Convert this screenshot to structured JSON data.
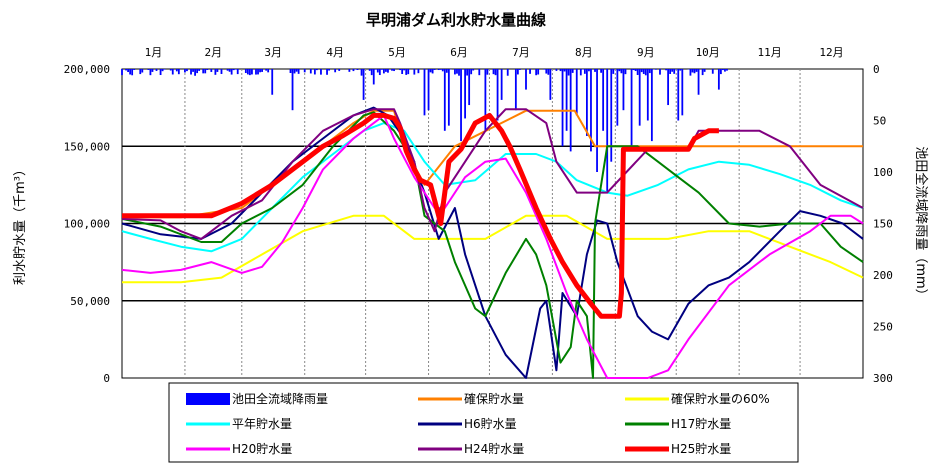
{
  "chart_data": {
    "title": "早明浦ダム利水貯水量曲線",
    "type": "line",
    "months": [
      "1月",
      "2月",
      "3月",
      "4月",
      "5月",
      "6月",
      "7月",
      "8月",
      "9月",
      "10月",
      "11月",
      "12月"
    ],
    "y_left": {
      "label": "利水貯水量（千m³）",
      "range": [
        0,
        200000
      ],
      "ticks": [
        "0",
        "50,000",
        "100,000",
        "150,000",
        "200,000"
      ]
    },
    "y_right": {
      "label": "池田全流域降雨量（mm）",
      "range": [
        0,
        300
      ],
      "inverted": true,
      "ticks": [
        "0",
        "50",
        "100",
        "150",
        "200",
        "250",
        "300"
      ]
    },
    "x_range_days": [
      1,
      366
    ],
    "colors": {
      "rain": "#0000ff",
      "secure": "#ff8000",
      "secure60": "#ffff00",
      "avg": "#00ffff",
      "h6": "#000080",
      "h17": "#008000",
      "h20": "#ff00ff",
      "h24": "#800080",
      "h25": "#ff0000"
    },
    "series": [
      {
        "key": "secure",
        "name": "確保貯水量",
        "width": 2,
        "x": [
          1,
          30,
          60,
          90,
          115,
          125,
          135,
          140,
          150,
          165,
          200,
          224,
          234,
          366
        ],
        "y": [
          104000,
          104000,
          110000,
          140000,
          165000,
          173000,
          173000,
          150000,
          125000,
          150000,
          173000,
          173000,
          150000,
          150000
        ]
      },
      {
        "key": "secure60",
        "name": "確保貯水量の60%",
        "width": 2,
        "x": [
          1,
          30,
          50,
          70,
          90,
          115,
          130,
          145,
          160,
          180,
          200,
          220,
          240,
          270,
          290,
          310,
          330,
          350,
          366
        ],
        "y": [
          62000,
          62000,
          65000,
          80000,
          95000,
          105000,
          105000,
          90000,
          90000,
          90000,
          105000,
          105000,
          90000,
          90000,
          95000,
          95000,
          85000,
          75000,
          65000
        ]
      },
      {
        "key": "avg",
        "name": "平年貯水量",
        "width": 2,
        "x": [
          1,
          15,
          30,
          45,
          60,
          75,
          90,
          105,
          120,
          130,
          140,
          150,
          160,
          175,
          190,
          205,
          215,
          225,
          240,
          250,
          265,
          280,
          295,
          310,
          325,
          340,
          355,
          366
        ],
        "y": [
          95000,
          90000,
          85000,
          82000,
          90000,
          110000,
          130000,
          145000,
          160000,
          165000,
          160000,
          140000,
          125000,
          128000,
          145000,
          145000,
          140000,
          128000,
          120000,
          118000,
          125000,
          135000,
          140000,
          138000,
          132000,
          125000,
          115000,
          110000
        ]
      },
      {
        "key": "h6",
        "name": "H6貯水量",
        "width": 2,
        "x": [
          1,
          20,
          40,
          55,
          70,
          85,
          100,
          115,
          125,
          132,
          140,
          150,
          157,
          165,
          170,
          180,
          190,
          200,
          207,
          210,
          215,
          218,
          225,
          230,
          235,
          240,
          245,
          255,
          262,
          270,
          280,
          290,
          300,
          310,
          325,
          335,
          345,
          356,
          366
        ],
        "y": [
          100000,
          93000,
          90000,
          100000,
          120000,
          140000,
          155000,
          170000,
          175000,
          170000,
          155000,
          120000,
          90000,
          110000,
          80000,
          40000,
          15000,
          0,
          45000,
          50000,
          5000,
          55000,
          40000,
          80000,
          102000,
          100000,
          75000,
          40000,
          30000,
          25000,
          48000,
          60000,
          65000,
          75000,
          95000,
          108000,
          105000,
          100000,
          90000
        ]
      },
      {
        "key": "h17",
        "name": "H17貯水量",
        "width": 2,
        "x": [
          1,
          20,
          40,
          50,
          60,
          75,
          90,
          105,
          120,
          125,
          135,
          145,
          150,
          160,
          165,
          175,
          180,
          190,
          200,
          205,
          210,
          217,
          222,
          225,
          230,
          233,
          234,
          240,
          245,
          255,
          265,
          275,
          285,
          300,
          315,
          330,
          345,
          355,
          366
        ],
        "y": [
          103000,
          98000,
          88000,
          88000,
          100000,
          110000,
          125000,
          150000,
          170000,
          172000,
          160000,
          140000,
          105000,
          95000,
          75000,
          45000,
          40000,
          68000,
          90000,
          80000,
          60000,
          10000,
          20000,
          50000,
          40000,
          0,
          100000,
          150000,
          150000,
          150000,
          140000,
          130000,
          120000,
          100000,
          98000,
          100000,
          100000,
          85000,
          75000
        ]
      },
      {
        "key": "h20",
        "name": "H20貯水量",
        "width": 2,
        "x": [
          1,
          15,
          30,
          45,
          60,
          70,
          80,
          90,
          100,
          115,
          125,
          130,
          135,
          145,
          155,
          160,
          170,
          180,
          190,
          200,
          210,
          220,
          230,
          240,
          250,
          260,
          270,
          280,
          300,
          320,
          340,
          350,
          360,
          366
        ],
        "y": [
          70000,
          68000,
          70000,
          75000,
          68000,
          72000,
          88000,
          110000,
          135000,
          155000,
          165000,
          170000,
          155000,
          130000,
          110000,
          110000,
          130000,
          140000,
          142000,
          120000,
          90000,
          55000,
          25000,
          0,
          0,
          0,
          5000,
          25000,
          60000,
          80000,
          95000,
          105000,
          105000,
          100000
        ]
      },
      {
        "key": "h24",
        "name": "H24貯水量",
        "width": 2,
        "x": [
          1,
          20,
          30,
          40,
          55,
          70,
          85,
          100,
          115,
          125,
          135,
          138,
          145,
          150,
          155,
          160,
          170,
          180,
          190,
          200,
          210,
          215,
          225,
          235,
          240,
          260,
          280,
          285,
          300,
          315,
          330,
          345,
          366
        ],
        "y": [
          103000,
          102000,
          95000,
          90000,
          105000,
          115000,
          140000,
          160000,
          170000,
          174000,
          174000,
          165000,
          140000,
          110000,
          95000,
          120000,
          140000,
          160000,
          174000,
          174000,
          165000,
          140000,
          120000,
          120000,
          120000,
          148000,
          148000,
          160000,
          160000,
          160000,
          150000,
          125000,
          110000
        ]
      },
      {
        "key": "h25",
        "name": "H25貯水量",
        "width": 5,
        "x": [
          1,
          30,
          45,
          60,
          75,
          90,
          100,
          110,
          120,
          125,
          130,
          135,
          138,
          141,
          145,
          148,
          153,
          158,
          162,
          168,
          175,
          182,
          188,
          192,
          197,
          205,
          212,
          218,
          225,
          232,
          237,
          240,
          244,
          246,
          247,
          248,
          260,
          270,
          280,
          283,
          290,
          295
        ],
        "y": [
          105000,
          105000,
          105000,
          113000,
          125000,
          140000,
          150000,
          157000,
          165000,
          170000,
          170000,
          168000,
          162000,
          147000,
          135000,
          128000,
          125000,
          100000,
          140000,
          148000,
          165000,
          170000,
          160000,
          150000,
          135000,
          110000,
          90000,
          75000,
          60000,
          48000,
          40000,
          40000,
          40000,
          40000,
          55000,
          148000,
          148000,
          148000,
          148000,
          155000,
          160000,
          160000
        ]
      }
    ],
    "rain_label": "池田全流域降雨量",
    "legend": [
      {
        "key": "rain",
        "label": "池田全流域降雨量"
      },
      {
        "key": "secure",
        "label": "確保貯水量"
      },
      {
        "key": "secure60",
        "label": "確保貯水量の60%"
      },
      {
        "key": "avg",
        "label": "平年貯水量"
      },
      {
        "key": "h6",
        "label": "H6貯水量"
      },
      {
        "key": "h17",
        "label": "H17貯水量"
      },
      {
        "key": "h20",
        "label": "H20貯水量"
      },
      {
        "key": "h24",
        "label": "H24貯水量"
      },
      {
        "key": "h25",
        "label": "H25貯水量"
      }
    ]
  }
}
